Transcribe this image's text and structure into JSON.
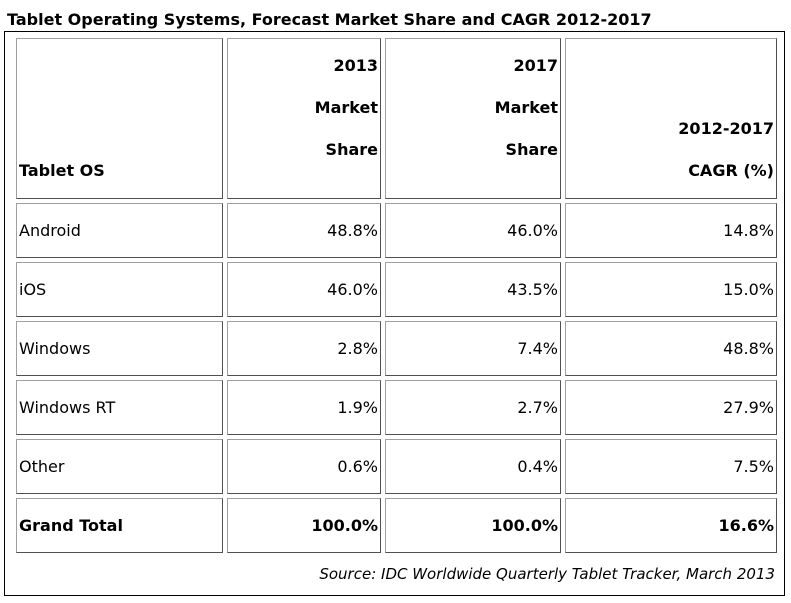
{
  "chart_data": {
    "type": "table",
    "title": "Tablet Operating Systems, Forecast Market Share and CAGR 2012-2017",
    "columns": [
      {
        "lines": [
          "Tablet OS"
        ]
      },
      {
        "lines": [
          "2013",
          "Market",
          "Share"
        ]
      },
      {
        "lines": [
          "2017",
          "Market",
          "Share"
        ]
      },
      {
        "lines": [
          "2012-2017",
          "CAGR (%)"
        ]
      }
    ],
    "rows": [
      {
        "os": "Android",
        "share_2013": "48.8%",
        "share_2017": "46.0%",
        "cagr": "14.8%"
      },
      {
        "os": "iOS",
        "share_2013": "46.0%",
        "share_2017": "43.5%",
        "cagr": "15.0%"
      },
      {
        "os": "Windows",
        "share_2013": "2.8%",
        "share_2017": "7.4%",
        "cagr": "48.8%"
      },
      {
        "os": "Windows RT",
        "share_2013": "1.9%",
        "share_2017": "2.7%",
        "cagr": "27.9%"
      },
      {
        "os": "Other",
        "share_2013": "0.6%",
        "share_2017": "0.4%",
        "cagr": "7.5%"
      }
    ],
    "total": {
      "os": "Grand Total",
      "share_2013": "100.0%",
      "share_2017": "100.0%",
      "cagr": "16.6%"
    },
    "source": "Source: IDC Worldwide Quarterly Tablet Tracker, March 2013"
  }
}
